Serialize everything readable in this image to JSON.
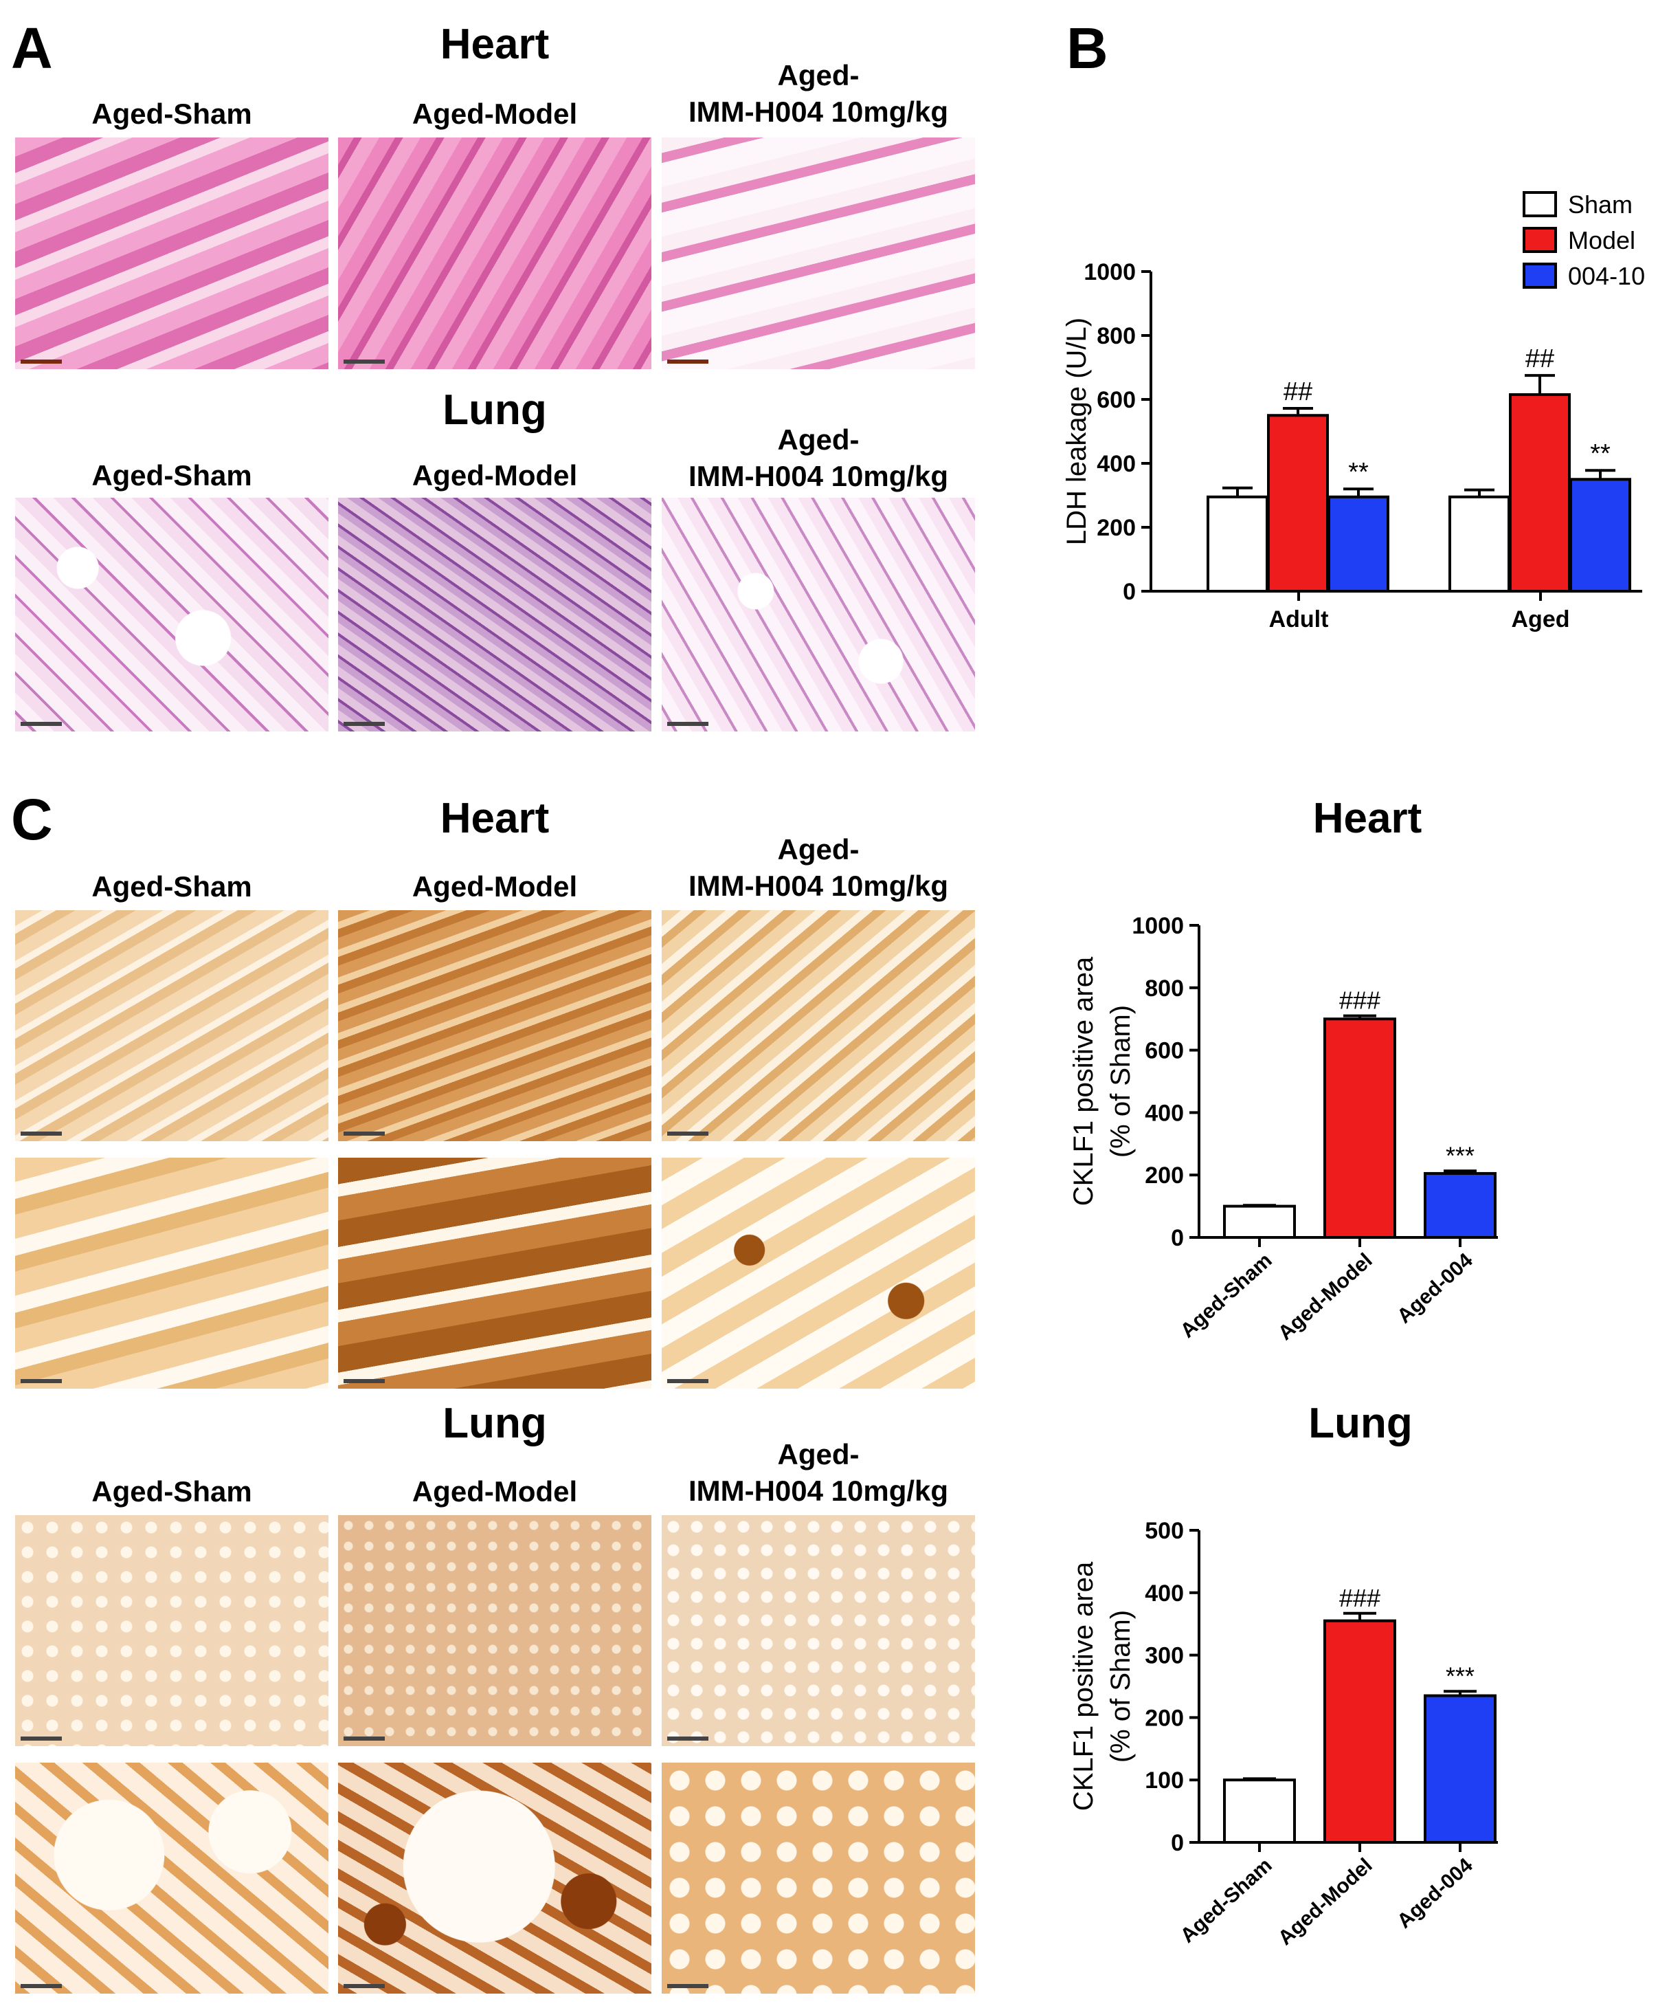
{
  "panel_A": {
    "letter": "A",
    "heart_title": "Heart",
    "lung_title": "Lung",
    "heart_columns": [
      "Aged-Sham",
      "Aged-Model",
      "Aged-\nIMM-H004 10mg/kg"
    ],
    "lung_columns": [
      "Aged-Sham",
      "Aged-Model",
      "Aged-\nIMM-H004 10mg/kg"
    ]
  },
  "panel_B": {
    "letter": "B"
  },
  "panel_C": {
    "letter": "C",
    "heart_title": "Heart",
    "lung_title": "Lung",
    "heart_columns": [
      "Aged-Sham",
      "Aged-Model",
      "Aged-\nIMM-H004 10mg/kg"
    ],
    "lung_columns": [
      "Aged-Sham",
      "Aged-Model",
      "Aged-\nIMM-H004 10mg/kg"
    ],
    "heart_chart_title": "Heart",
    "lung_chart_title": "Lung"
  },
  "colors": {
    "sham": "#ffffff",
    "model": "#ee1c1c",
    "drug": "#1f3ff5"
  },
  "chart_data": [
    {
      "id": "B",
      "type": "bar",
      "categories": [
        "Adult",
        "Aged"
      ],
      "series": [
        {
          "name": "Sham",
          "values": [
            295,
            295
          ],
          "errors": [
            28,
            22
          ],
          "sig": [
            "",
            ""
          ]
        },
        {
          "name": "Model",
          "values": [
            550,
            615
          ],
          "errors": [
            22,
            60
          ],
          "sig": [
            "##",
            "##"
          ]
        },
        {
          "name": "004-10",
          "values": [
            295,
            350
          ],
          "errors": [
            25,
            28
          ],
          "sig": [
            "**",
            "**"
          ]
        }
      ],
      "xlabel": "",
      "ylabel": "LDH leakage (U/L)",
      "ylim": [
        0,
        1000
      ],
      "yticks": [
        0,
        200,
        400,
        600,
        800,
        1000
      ],
      "legend": "top-right"
    },
    {
      "id": "C-heart",
      "type": "bar",
      "title": "Heart",
      "categories": [
        "Aged-Sham",
        "Aged-Model",
        "Aged-004"
      ],
      "values": [
        100,
        700,
        205
      ],
      "errors": [
        3,
        10,
        8
      ],
      "sig": [
        "",
        "###",
        "***"
      ],
      "ylabel": "CKLF1 positive area\n(% of Sham)",
      "ylim": [
        0,
        1000
      ],
      "yticks": [
        0,
        200,
        400,
        600,
        800,
        1000
      ]
    },
    {
      "id": "C-lung",
      "type": "bar",
      "title": "Lung",
      "categories": [
        "Aged-Sham",
        "Aged-Model",
        "Aged-004"
      ],
      "values": [
        100,
        355,
        235
      ],
      "errors": [
        2,
        12,
        7
      ],
      "sig": [
        "",
        "###",
        "***"
      ],
      "ylabel": "CKLF1 positive area\n(% of Sham)",
      "ylim": [
        0,
        500
      ],
      "yticks": [
        0,
        100,
        200,
        300,
        400,
        500
      ]
    }
  ]
}
